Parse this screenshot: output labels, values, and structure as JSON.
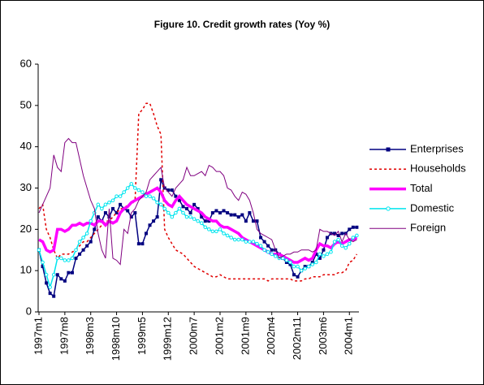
{
  "chart_data": {
    "type": "line",
    "title": "Figure 10. Credit growth rates (Yoy %)",
    "categories": [
      "1997m1",
      null,
      null,
      null,
      null,
      null,
      null,
      "1997m8",
      null,
      null,
      null,
      null,
      null,
      null,
      "1998m3",
      null,
      null,
      null,
      null,
      null,
      null,
      "1998m10",
      null,
      null,
      null,
      null,
      null,
      null,
      "1999m5",
      null,
      null,
      null,
      null,
      null,
      null,
      "1999m12",
      null,
      null,
      null,
      null,
      null,
      null,
      "2000m7",
      null,
      null,
      null,
      null,
      null,
      null,
      "2001m2",
      null,
      null,
      null,
      null,
      null,
      null,
      "2001m9",
      null,
      null,
      null,
      null,
      null,
      null,
      "2002m4",
      null,
      null,
      null,
      null,
      null,
      null,
      "2002m11",
      null,
      null,
      null,
      null,
      null,
      null,
      "2003m6",
      null,
      null,
      null,
      null,
      null,
      null,
      "2004m1",
      null,
      null
    ],
    "ylim": [
      0,
      60
    ],
    "yticks": [
      0,
      10,
      20,
      30,
      40,
      50,
      60
    ],
    "grid": false,
    "legend": "right",
    "series": [
      {
        "name": "Enterprises",
        "color": "#000080",
        "line_style": "solid",
        "line_width": 1.5,
        "marker": "square",
        "values": [
          15,
          11,
          7,
          4.5,
          3.8,
          9,
          8,
          7.5,
          9.5,
          9.5,
          13,
          14,
          15,
          16,
          17,
          20,
          23,
          22,
          24,
          23,
          25,
          24,
          26,
          25,
          24.5,
          23,
          24,
          16.5,
          16.5,
          19,
          21,
          22,
          23,
          32,
          30,
          29.5,
          29.5,
          28,
          27,
          25.5,
          25,
          24,
          26,
          25,
          23,
          22,
          22,
          24,
          24.5,
          24,
          24.5,
          24,
          23.5,
          23.5,
          23,
          23.5,
          22,
          24,
          22,
          22,
          18,
          17,
          16,
          15,
          15,
          14,
          13,
          12,
          11.5,
          9,
          8.5,
          10,
          11,
          11,
          12,
          14,
          13,
          15,
          18,
          19,
          19,
          18.5,
          19,
          19,
          20,
          20.5,
          20.5
        ]
      },
      {
        "name": "Households",
        "color": "#e00000",
        "line_style": "dotted",
        "line_width": 1.5,
        "marker": "none",
        "values": [
          25,
          26,
          20,
          18,
          15,
          13,
          14,
          14,
          14,
          14.5,
          15,
          16,
          17,
          17,
          18,
          19,
          20,
          21,
          22,
          22,
          23,
          24,
          25,
          25,
          26,
          26,
          27,
          48,
          49,
          50.5,
          50.5,
          48,
          45,
          43,
          20,
          18,
          16.5,
          15,
          14.5,
          14,
          13,
          12,
          11,
          10.5,
          10,
          9.5,
          9,
          8.5,
          8.5,
          9,
          8.5,
          8,
          8,
          8,
          8,
          8,
          8,
          8,
          8,
          8,
          8,
          8,
          7.5,
          8,
          8,
          8,
          8,
          8,
          8,
          7.5,
          7.5,
          7.5,
          8,
          8,
          8.5,
          8.5,
          8.5,
          9,
          9,
          9,
          9,
          9.5,
          9.5,
          10,
          12,
          12.5,
          14
        ]
      },
      {
        "name": "Total",
        "color": "#ff00ff",
        "line_style": "solid",
        "line_width": 3.5,
        "marker": "none",
        "values": [
          17.5,
          17,
          15,
          14.5,
          15,
          20,
          20,
          19.5,
          20,
          21,
          21,
          21.5,
          21,
          21.5,
          21.5,
          21,
          22,
          22,
          21,
          22,
          21.5,
          22,
          24,
          25,
          25.5,
          26.5,
          27,
          27.5,
          28,
          28.5,
          29,
          29.5,
          30,
          29,
          27,
          26,
          25.5,
          27,
          28,
          27,
          26,
          25.5,
          25,
          24.5,
          24,
          23,
          22.5,
          22,
          22,
          21,
          20.5,
          20.5,
          20,
          19.5,
          19,
          18,
          17.5,
          17,
          16.5,
          16,
          15.5,
          15,
          14.5,
          14,
          14,
          14,
          13.5,
          13,
          12.5,
          12,
          12,
          12.5,
          13,
          12.5,
          13,
          15,
          16.5,
          16,
          16,
          15.5,
          16.5,
          17,
          16.5,
          17,
          17.5,
          17.5,
          18
        ]
      },
      {
        "name": "Domestic",
        "color": "#00e5ee",
        "line_style": "solid",
        "line_width": 1.5,
        "marker": "circle",
        "values": [
          15,
          12,
          9,
          6,
          9,
          13,
          13,
          12.5,
          12.5,
          13,
          15,
          17,
          18,
          19,
          22,
          24,
          26,
          25,
          26,
          26.5,
          27,
          28,
          28,
          29,
          30,
          31,
          30,
          29.5,
          29,
          28,
          28,
          27.5,
          26.5,
          26,
          25,
          24,
          23,
          24,
          25,
          24,
          23,
          23,
          22.5,
          22,
          21.5,
          20.5,
          20,
          19.5,
          19.5,
          20,
          19,
          18.5,
          18,
          17.5,
          17.5,
          17.5,
          17,
          17,
          17,
          16.5,
          16,
          15,
          14.5,
          14,
          13.5,
          13,
          13,
          12.5,
          12,
          11,
          11,
          10,
          10.5,
          11,
          11.5,
          12,
          14,
          13.5,
          14,
          14.5,
          17,
          17.5,
          16,
          15.5,
          16.5,
          18,
          18.5
        ]
      },
      {
        "name": "Foreign",
        "color": "#800080",
        "line_style": "solid",
        "line_width": 1,
        "marker": "none",
        "values": [
          24,
          26,
          28,
          30,
          38,
          35,
          34,
          41,
          42,
          41,
          41,
          37,
          33,
          30,
          27,
          25,
          19,
          15,
          13,
          25,
          13,
          12.5,
          11.5,
          20,
          19,
          24,
          25,
          27,
          28,
          29,
          32,
          33,
          34,
          35,
          30,
          29,
          28,
          30,
          31,
          32,
          35,
          33,
          33,
          33.5,
          34,
          33,
          35.5,
          35,
          34,
          34,
          33,
          30,
          29.5,
          28,
          27,
          29,
          28.5,
          27,
          24,
          20,
          19,
          18.5,
          18,
          17.5,
          15,
          13,
          13.5,
          14,
          14,
          14.5,
          14.5,
          15,
          15,
          15,
          14.5,
          15,
          20,
          19.5,
          19.5,
          19,
          18.5,
          19.5,
          17,
          19,
          17.5,
          17,
          17.5
        ]
      }
    ]
  }
}
